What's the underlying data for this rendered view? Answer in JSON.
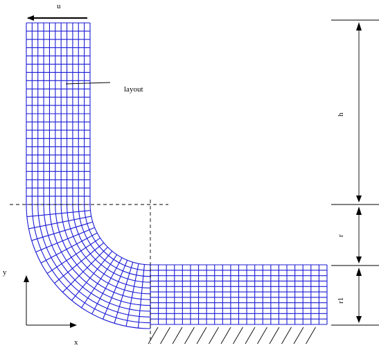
{
  "labels": {
    "u": "u",
    "layout": "layout",
    "h": "h",
    "r": "r",
    "r1": "r1",
    "x": "x",
    "y": "y"
  },
  "mesh": {
    "color": "#1a1ad6",
    "vertical_leg_columns": 11,
    "vertical_leg_rows": 22,
    "bend_sectors": 16,
    "horizontal_leg_columns": 22
  },
  "colors": {
    "mesh": "#1a1ad6",
    "annotation": "#000000"
  }
}
